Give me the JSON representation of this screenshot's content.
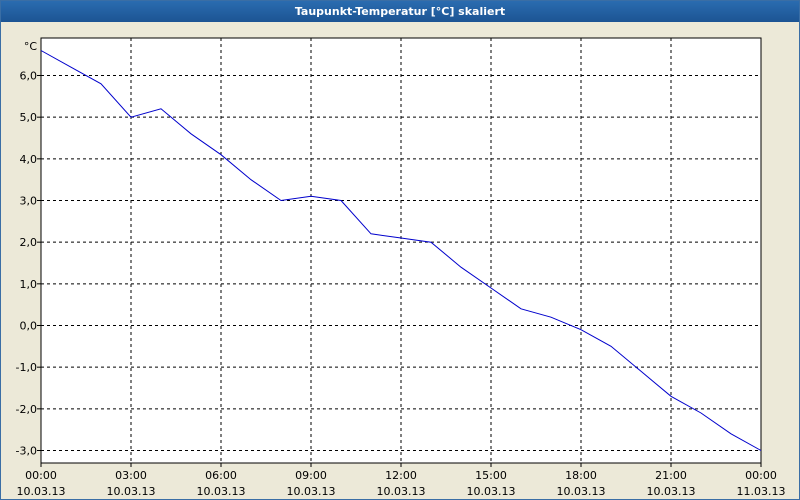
{
  "window": {
    "title": "Taupunkt-Temperatur [°C] skaliert"
  },
  "chart_data": {
    "type": "line",
    "title": "Taupunkt-Temperatur [°C] skaliert",
    "ylabel": "°C",
    "xlabel": "",
    "ylim": [
      -3.3,
      6.9
    ],
    "xlim": [
      "10.03.13 00:00",
      "11.03.13 00:00"
    ],
    "grid": true,
    "x_ticks": [
      {
        "time": "00:00",
        "date": "10.03.13"
      },
      {
        "time": "03:00",
        "date": "10.03.13"
      },
      {
        "time": "06:00",
        "date": "10.03.13"
      },
      {
        "time": "09:00",
        "date": "10.03.13"
      },
      {
        "time": "12:00",
        "date": "10.03.13"
      },
      {
        "time": "15:00",
        "date": "10.03.13"
      },
      {
        "time": "18:00",
        "date": "10.03.13"
      },
      {
        "time": "21:00",
        "date": "10.03.13"
      },
      {
        "time": "00:00",
        "date": "11.03.13"
      }
    ],
    "y_ticks": [
      "6,0",
      "5,0",
      "4,0",
      "3,0",
      "2,0",
      "1,0",
      "0,0",
      "-1,0",
      "-2,0",
      "-3,0"
    ],
    "y_tick_values": [
      6,
      5,
      4,
      3,
      2,
      1,
      0,
      -1,
      -2,
      -3
    ],
    "series": [
      {
        "color": "#0000cc",
        "x": [
          "10.03.13 00:00",
          "10.03.13 01:00",
          "10.03.13 02:00",
          "10.03.13 03:00",
          "10.03.13 04:00",
          "10.03.13 05:00",
          "10.03.13 06:00",
          "10.03.13 07:00",
          "10.03.13 08:00",
          "10.03.13 09:00",
          "10.03.13 10:00",
          "10.03.13 11:00",
          "10.03.13 12:00",
          "10.03.13 13:00",
          "10.03.13 14:00",
          "10.03.13 15:00",
          "10.03.13 16:00",
          "10.03.13 17:00",
          "10.03.13 18:00",
          "10.03.13 19:00",
          "10.03.13 20:00",
          "10.03.13 21:00",
          "10.03.13 22:00",
          "10.03.13 23:00",
          "11.03.13 00:00"
        ],
        "values": [
          6.6,
          6.2,
          5.8,
          5.0,
          5.2,
          4.6,
          4.1,
          3.5,
          3.0,
          3.1,
          3.0,
          2.2,
          2.1,
          2.0,
          1.4,
          0.9,
          0.4,
          0.2,
          -0.1,
          -0.5,
          -1.1,
          -1.7,
          -2.1,
          -2.6,
          -3.0
        ]
      }
    ]
  }
}
